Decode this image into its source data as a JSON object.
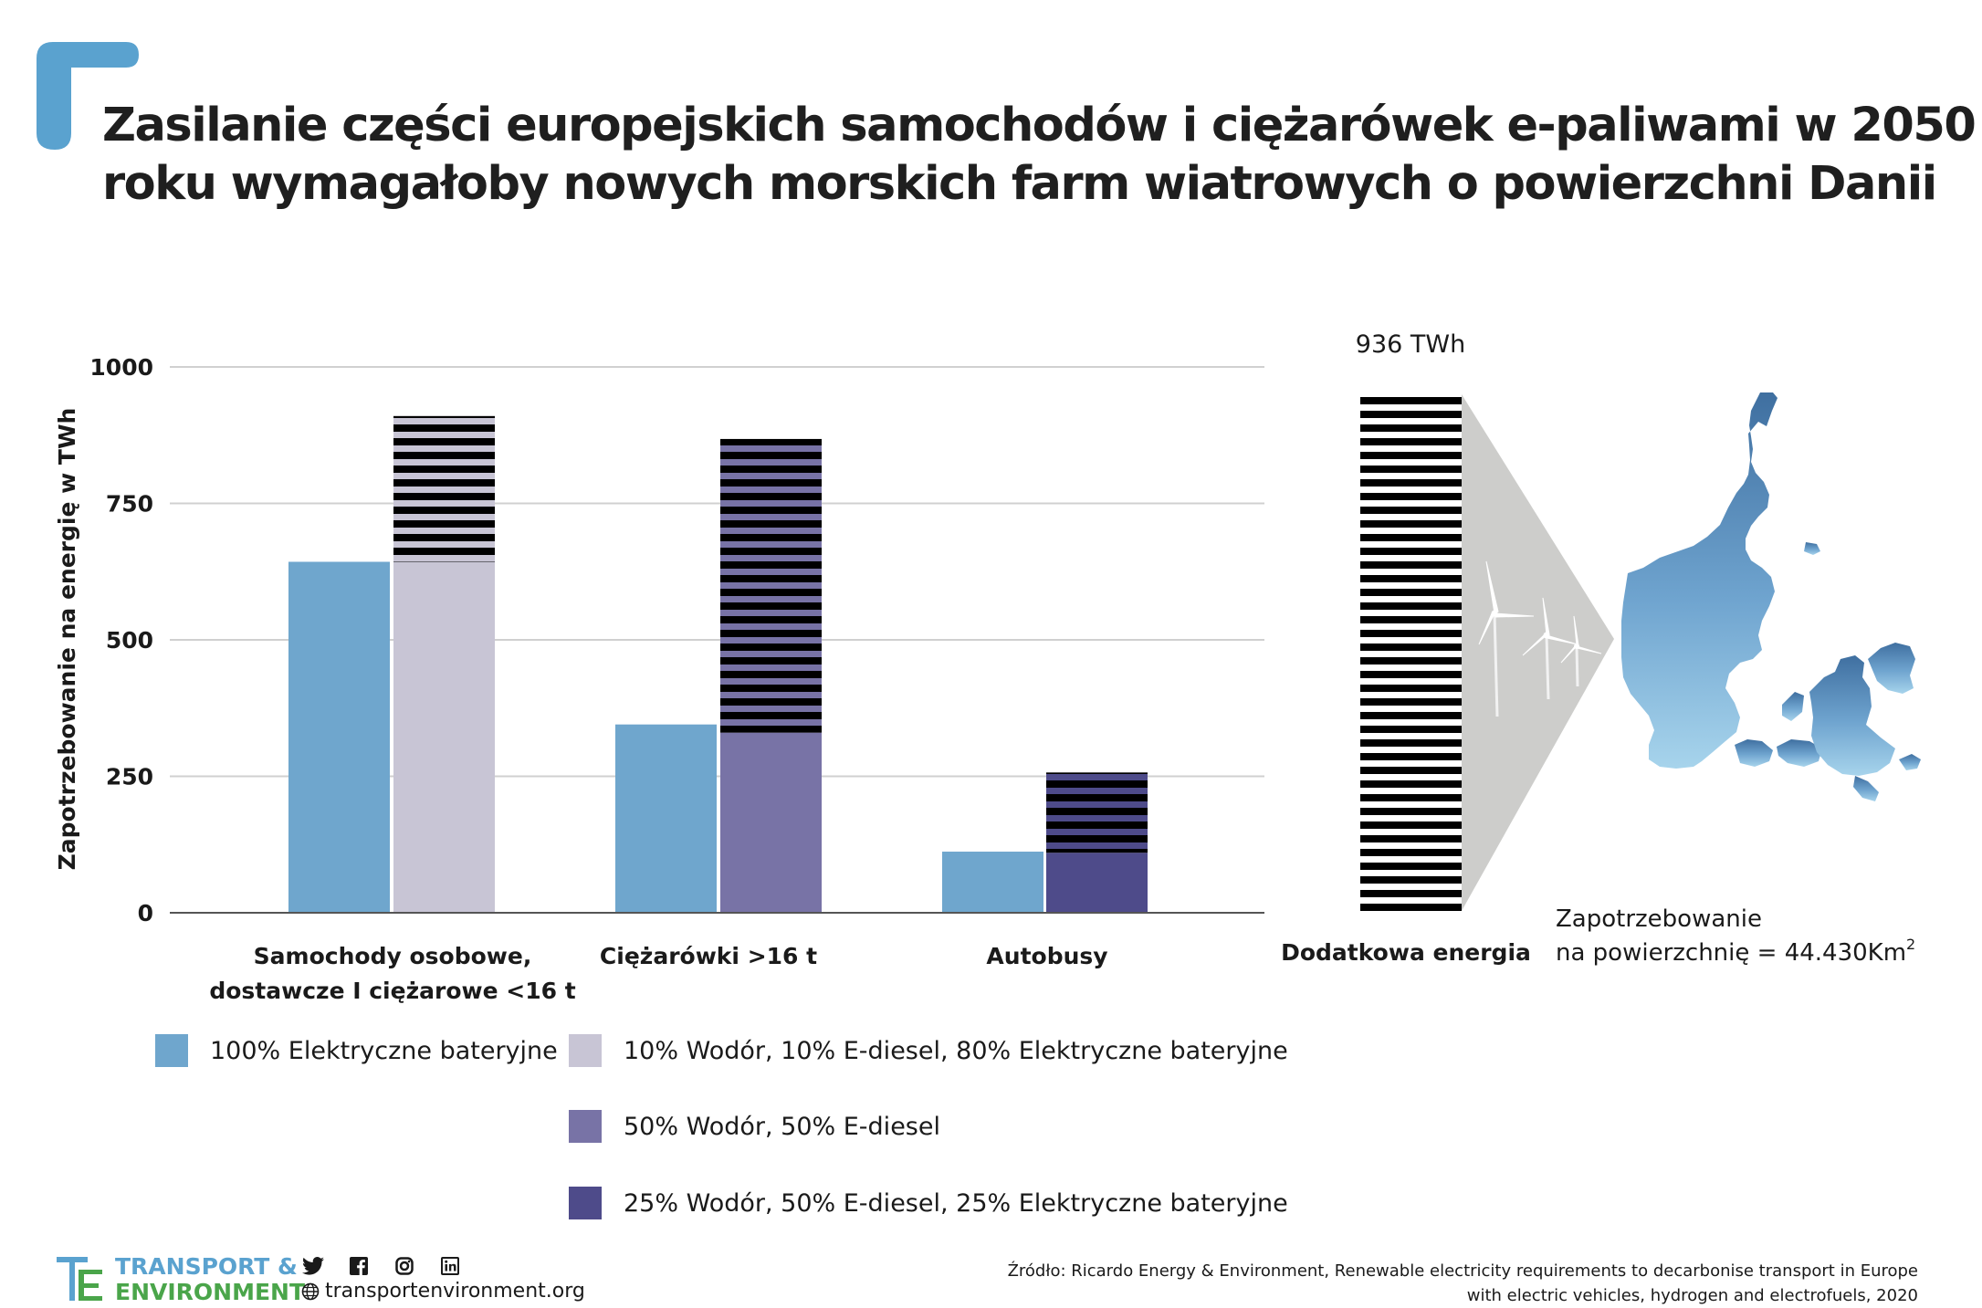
{
  "title": {
    "line1": "Zasilanie części europejskich samochodów i ciężarówek e-paliwami w 2050",
    "line2": "roku wymagałoby nowych morskich farm wiatrowych o powierzchni Danii"
  },
  "colors": {
    "accent": "#5aa2cf",
    "battery": "#6fa6cd",
    "mix_light": "#c8c5d5",
    "h2_ediesel": "#7873a6",
    "mix_dark": "#4e4b8a",
    "stripe": "#000000",
    "grid": "#d0d0d0"
  },
  "chart_data": {
    "type": "bar",
    "ylabel": "Zapotrzebowanie na energię w TWh",
    "ylim": [
      0,
      1000
    ],
    "yticks": [
      "0",
      "250",
      "500",
      "750",
      "1000"
    ],
    "categories": [
      "Samochody osobowe, dostawcze I ciężarowe <16 t",
      "Ciężarówki >16 t",
      "Autobusy"
    ],
    "category_labels": [
      [
        "Samochody osobowe,",
        "dostawcze I  ciężarowe <16 t"
      ],
      [
        "Ciężarówki >16 t"
      ],
      [
        "Autobusy"
      ]
    ],
    "bars": [
      {
        "category": 0,
        "series": "100% Elektryczne bateryjne",
        "base": 643,
        "extra": 0
      },
      {
        "category": 0,
        "series": "10% Wodór, 10% E-diesel, 80%  Elektryczne bateryjne",
        "base": 643,
        "extra": 267
      },
      {
        "category": 1,
        "series": "100% Elektryczne bateryjne",
        "base": 345,
        "extra": 0
      },
      {
        "category": 1,
        "series": "50% Wodór, 50% E-diesel",
        "base": 330,
        "extra": 538
      },
      {
        "category": 2,
        "series": "100% Elektryczne bateryjne",
        "base": 112,
        "extra": 0
      },
      {
        "category": 2,
        "series": "25% Wodór, 50% E-diesel, 25%  Elektryczne bateryjne",
        "base": 110,
        "extra": 147
      }
    ],
    "legend": [
      {
        "label": "100% Elektryczne bateryjne",
        "color": "#6fa6cd"
      },
      {
        "label": "10% Wodór, 10% E-diesel, 80%  Elektryczne bateryjne",
        "color": "#c8c5d5"
      },
      {
        "label": "50% Wodór, 50% E-diesel",
        "color": "#7873a6"
      },
      {
        "label": "25% Wodór, 50% E-diesel, 25%  Elektryczne bateryjne",
        "color": "#4e4b8a"
      }
    ],
    "additional_energy": {
      "value": 936,
      "value_label": "936 TWh",
      "label": "Dodatkowa energia"
    },
    "area": {
      "label_line1": "Zapotrzebowanie",
      "label_line2": "na powierzchnię =  44.430Km",
      "sup": "2"
    }
  },
  "footer": {
    "brand_line1": "TRANSPORT &",
    "brand_line2": "ENVIRONMENT",
    "website": "transportenvironment.org",
    "social_icons": [
      "twitter-icon",
      "facebook-icon",
      "instagram-icon",
      "linkedin-icon"
    ],
    "source_line1": "Źródło: Ricardo Energy & Environment, Renewable electricity requirements to decarbonise transport in Europe",
    "source_line2": "with electric vehicles, hydrogen and electrofuels, 2020"
  }
}
